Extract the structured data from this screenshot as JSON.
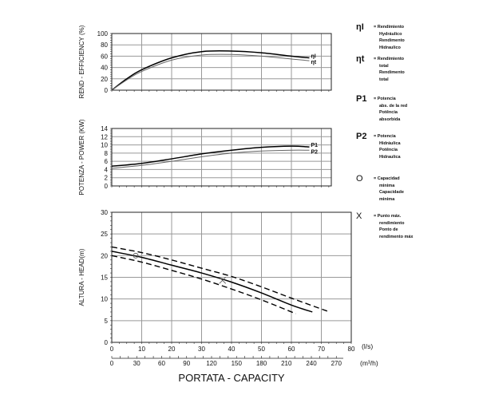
{
  "chart_data": [
    {
      "type": "line",
      "ylabel": "REND - EFFICIENCY (%)",
      "ylim": [
        0,
        100
      ],
      "yticks": [
        0,
        20,
        40,
        60,
        80,
        100
      ],
      "x_unit": "l/s",
      "grid": true,
      "series": [
        {
          "name": "ηI",
          "color": "#000000",
          "x": [
            0,
            5,
            10,
            20,
            30,
            40,
            50,
            60,
            66
          ],
          "y": [
            0,
            20,
            36,
            57,
            68,
            69,
            66,
            60,
            57
          ]
        },
        {
          "name": "ηt",
          "color": "#666666",
          "x": [
            0,
            5,
            10,
            20,
            30,
            40,
            50,
            60,
            66
          ],
          "y": [
            0,
            18,
            33,
            53,
            62,
            63,
            60,
            55,
            52
          ]
        }
      ],
      "curve_labels": [
        "ηI",
        "ηt"
      ]
    },
    {
      "type": "line",
      "ylabel": "POTENZA - POWER  (KW)",
      "ylim": [
        0,
        14
      ],
      "yticks": [
        0,
        2,
        4,
        6,
        8,
        10,
        12,
        14
      ],
      "x_unit": "l/s",
      "grid": true,
      "series": [
        {
          "name": "P1",
          "color": "#000000",
          "x": [
            0,
            10,
            20,
            30,
            40,
            50,
            60,
            66
          ],
          "y": [
            4.8,
            5.5,
            6.6,
            7.8,
            8.7,
            9.4,
            9.7,
            9.5
          ]
        },
        {
          "name": "P2",
          "color": "#666666",
          "x": [
            0,
            10,
            20,
            30,
            40,
            50,
            60,
            66
          ],
          "y": [
            4.3,
            5.0,
            6.0,
            7.1,
            8.0,
            8.5,
            8.7,
            8.7
          ]
        }
      ],
      "curve_labels": [
        "P1",
        "P2"
      ]
    },
    {
      "type": "line",
      "ylabel": "ALTURA - HEAD(m)",
      "xlabel": "PORTATA - CAPACITY",
      "xlim": [
        0,
        80
      ],
      "ylim": [
        0,
        30
      ],
      "xticks": [
        0,
        10,
        20,
        30,
        40,
        50,
        60,
        70,
        80
      ],
      "yticks": [
        0,
        5,
        10,
        15,
        20,
        25,
        30
      ],
      "x_unit": "(l/s)",
      "x2_unit": "(m³/h)",
      "x2ticks": [
        0,
        30,
        60,
        90,
        120,
        150,
        180,
        210,
        240,
        270
      ],
      "grid": true,
      "series": [
        {
          "style": "solid",
          "x": [
            0,
            10,
            20,
            30,
            40,
            50,
            60,
            67
          ],
          "y": [
            21,
            19.6,
            17.8,
            16,
            13.9,
            11.4,
            8.6,
            7
          ]
        },
        {
          "style": "dashed",
          "x": [
            0,
            10,
            20,
            30,
            40,
            50,
            60,
            72
          ],
          "y": [
            22,
            20.7,
            19,
            17.1,
            15.2,
            12.8,
            10.2,
            7.2
          ]
        },
        {
          "style": "dashed",
          "x": [
            0,
            10,
            20,
            30,
            40,
            50,
            61.5
          ],
          "y": [
            20,
            18.5,
            16.6,
            14.6,
            12.3,
            9.8,
            6.6
          ]
        }
      ],
      "markers": [
        {
          "type": "circle",
          "meaning": "min_capacity",
          "x": 8,
          "y": 20
        },
        {
          "type": "x",
          "meaning": "best_efficiency_point",
          "x": 37,
          "y": 14.3
        }
      ]
    }
  ],
  "legend": [
    {
      "symbol": "ηI",
      "icon": "eta-i",
      "text": [
        "= Rendimiento",
        "Hydráulico",
        "Rendimento",
        "Hidraulico"
      ]
    },
    {
      "symbol": "ηt",
      "icon": "eta-t",
      "text": [
        "= Rendimiento",
        "total",
        "Rendimento",
        "total"
      ]
    },
    {
      "symbol": "P1",
      "icon": "p1",
      "text": [
        "= Potencia",
        "abs. de la red",
        "Potência",
        "absorbida"
      ]
    },
    {
      "symbol": "P2",
      "icon": "p2",
      "text": [
        "= Potencia",
        "Hidráulica",
        "Potência",
        "Hidraulica"
      ]
    },
    {
      "symbol": "O",
      "icon": "circle-icon",
      "text": [
        "= Capacidad",
        "minima",
        "Capacidade",
        "minima"
      ]
    },
    {
      "symbol": "X",
      "icon": "x-icon",
      "text": [
        "= Punto máx.",
        "rendimiento",
        "Ponto de",
        "rendimento máx"
      ]
    }
  ]
}
